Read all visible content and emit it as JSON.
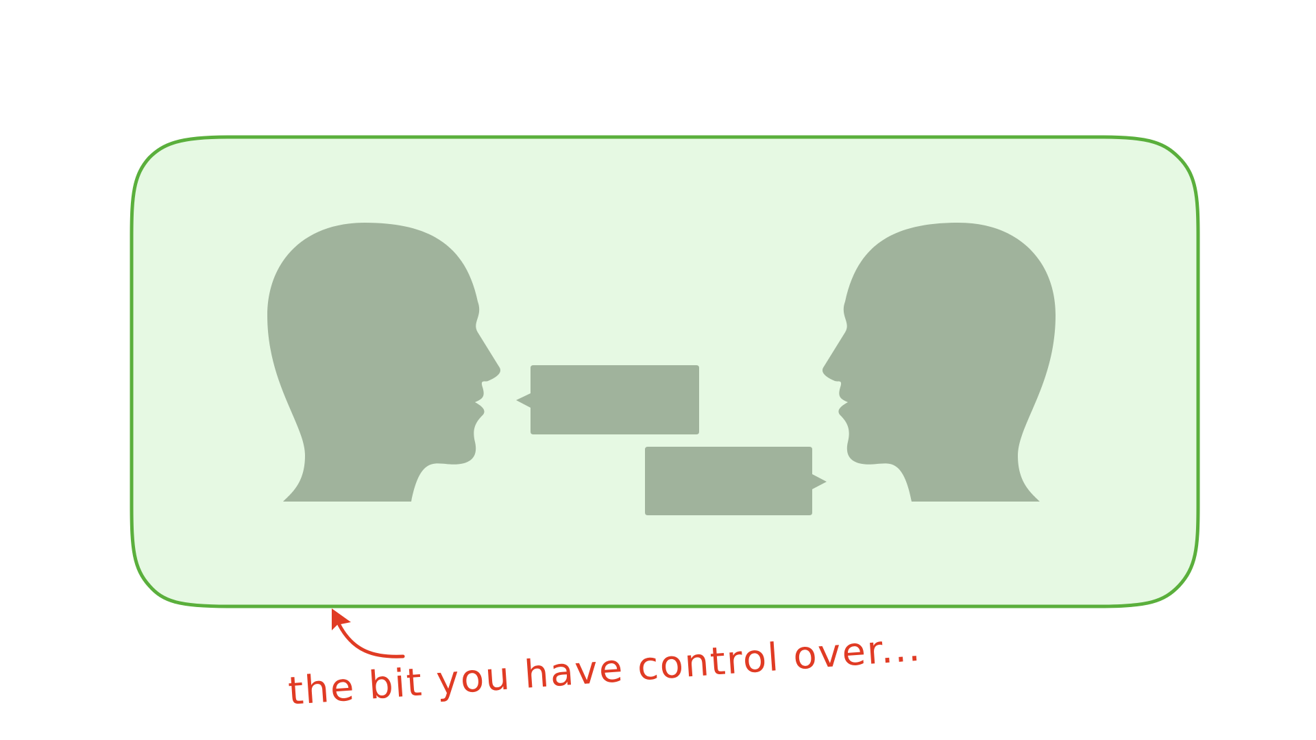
{
  "diagram": {
    "annotation": "the bit you have control over...",
    "colors": {
      "panel_fill": "#e6f9e3",
      "panel_stroke": "#5aaf3c",
      "figure_fill": "#a0b39c",
      "annotation": "#e03b24"
    }
  }
}
